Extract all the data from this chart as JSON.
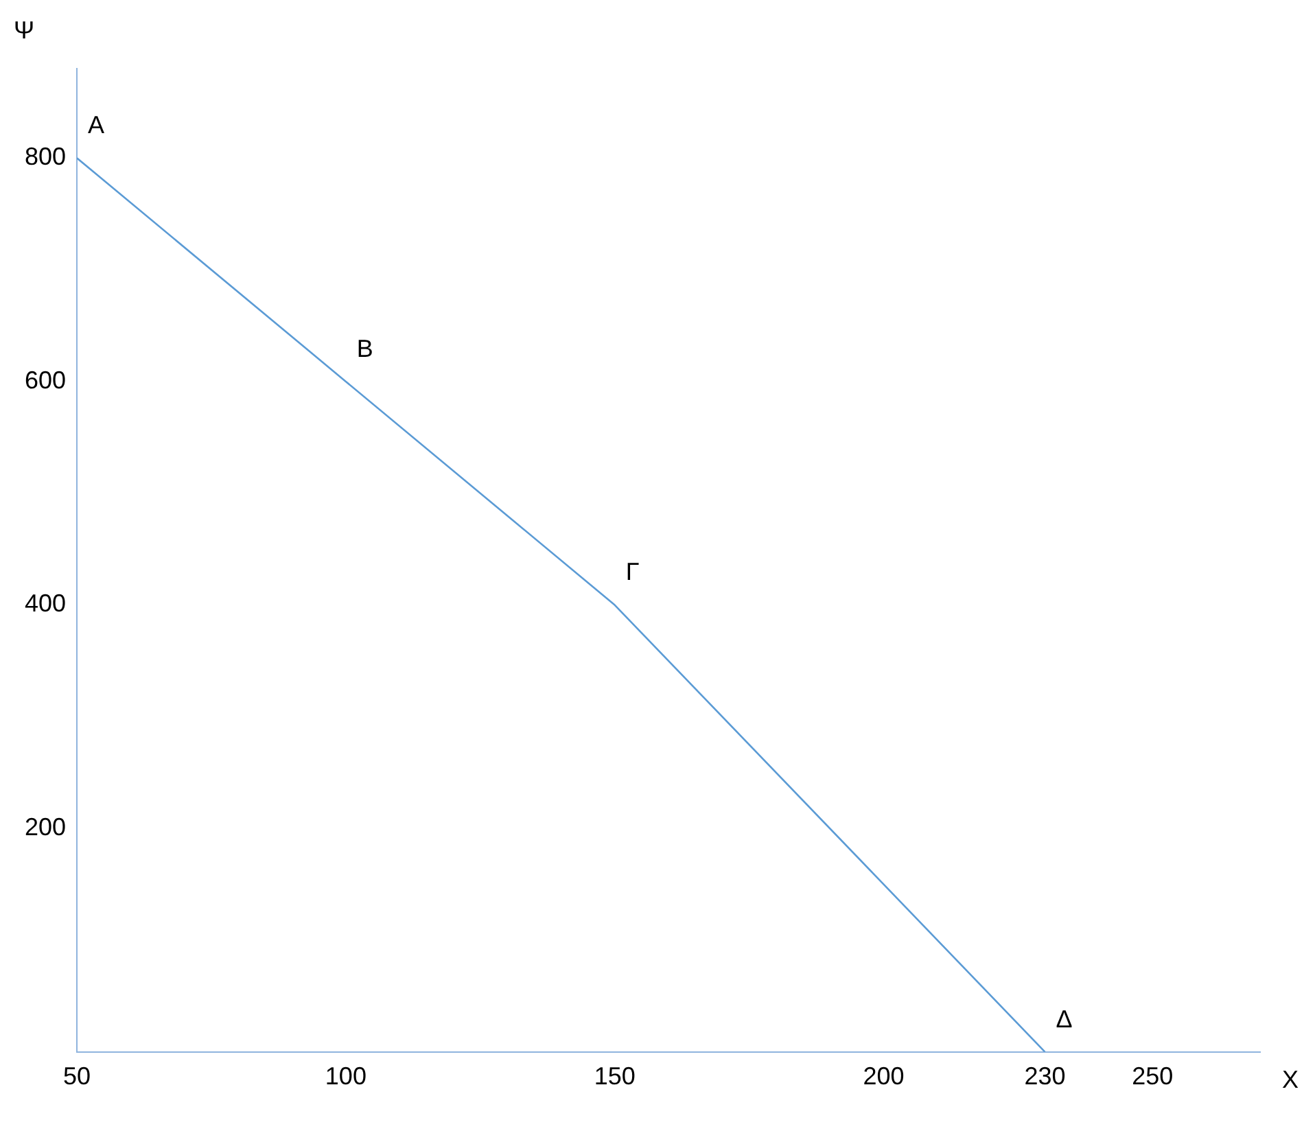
{
  "chart_data": {
    "type": "line",
    "xlabel": "X",
    "ylabel": "Ψ",
    "x": [
      50,
      100,
      150,
      230
    ],
    "series": [
      {
        "color": "#5b9bd5",
        "values": [
          800,
          600,
          400,
          0
        ]
      }
    ],
    "xlim": [
      50,
      270
    ],
    "xticks": [
      50,
      100,
      150,
      200,
      230,
      250
    ],
    "ylim": [
      0,
      880
    ],
    "yticks": [
      200,
      400,
      600,
      800
    ],
    "annotations": [
      {
        "text": "Α",
        "x": 50,
        "y": 800
      },
      {
        "text": "Β",
        "x": 100,
        "y": 600
      },
      {
        "text": "Γ",
        "x": 150,
        "y": 400
      },
      {
        "text": "Δ",
        "x": 230,
        "y": 0
      }
    ],
    "grid": false,
    "legend": false,
    "marker": "none",
    "line_style": "solid"
  }
}
